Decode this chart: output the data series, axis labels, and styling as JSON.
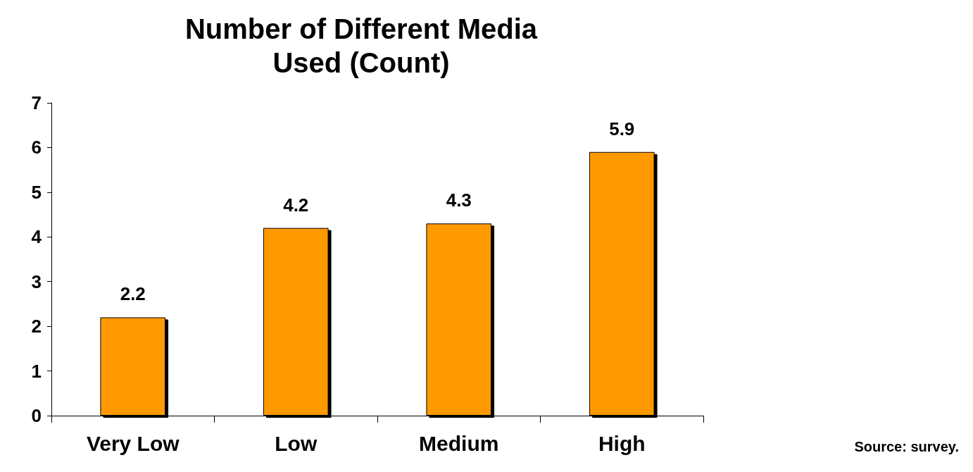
{
  "chart_data": {
    "type": "bar",
    "title": "Number of Different Media\nUsed (Count)",
    "categories": [
      "Very Low",
      "Low",
      "Medium",
      "High"
    ],
    "values": [
      2.2,
      4.2,
      4.3,
      5.9
    ],
    "color": "#ff9900",
    "ylim": [
      0,
      7
    ],
    "yticks": [
      0,
      1,
      2,
      3,
      4,
      5,
      6,
      7
    ],
    "grid": false,
    "data_labels": true,
    "annotations": [
      "Source: survey."
    ]
  }
}
